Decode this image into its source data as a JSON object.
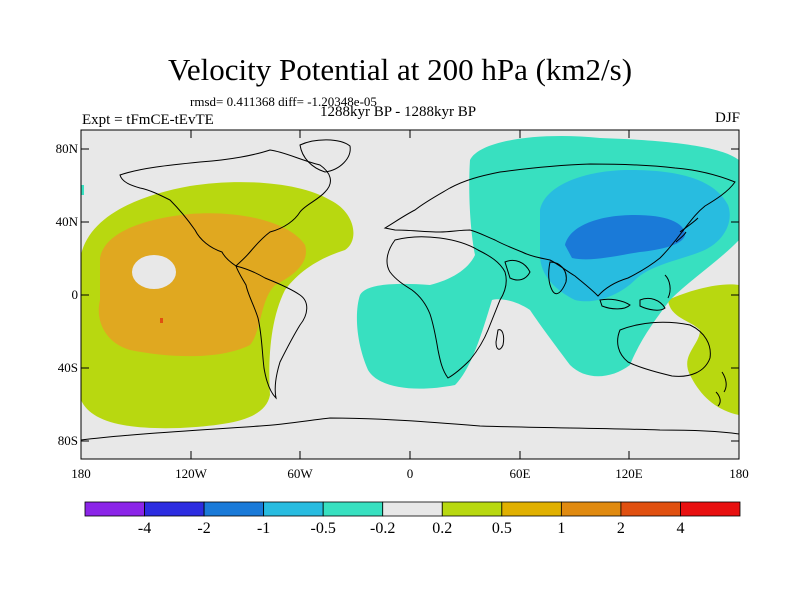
{
  "title": "Velocity Potential at 200 hPa (km2/s)",
  "stats": "rmsd= 0.411368 diff= -1.20348e-05",
  "left_label": "Expt = tFmCE-tEvTE",
  "center_label": "1288kyr BP - 1288kyr BP",
  "right_label": "DJF",
  "lat_ticks": [
    "80N",
    "40N",
    "0",
    "40S",
    "80S"
  ],
  "lon_ticks": [
    "180",
    "120W",
    "60W",
    "0",
    "60E",
    "120E",
    "180"
  ],
  "colorbar": {
    "colors": [
      "#8b25e8",
      "#2c2ce0",
      "#1a7ad8",
      "#28bce0",
      "#38e0c0",
      "#e8e8e8",
      "#b8d810",
      "#e0b000",
      "#e08a10",
      "#e05010",
      "#e81010"
    ],
    "labels": [
      "-4",
      "-2",
      "-1",
      "-0.5",
      "-0.2",
      "0.2",
      "0.5",
      "1",
      "2",
      "4"
    ]
  },
  "colors": {
    "background": "#e8e8e8",
    "positive_weak": "#b8d810",
    "positive_moderate": "#e0a820",
    "negative_weak": "#38e0c0",
    "negative_moderate": "#28bce0",
    "negative_strong": "#1a7ad8",
    "coastline": "#000000"
  }
}
